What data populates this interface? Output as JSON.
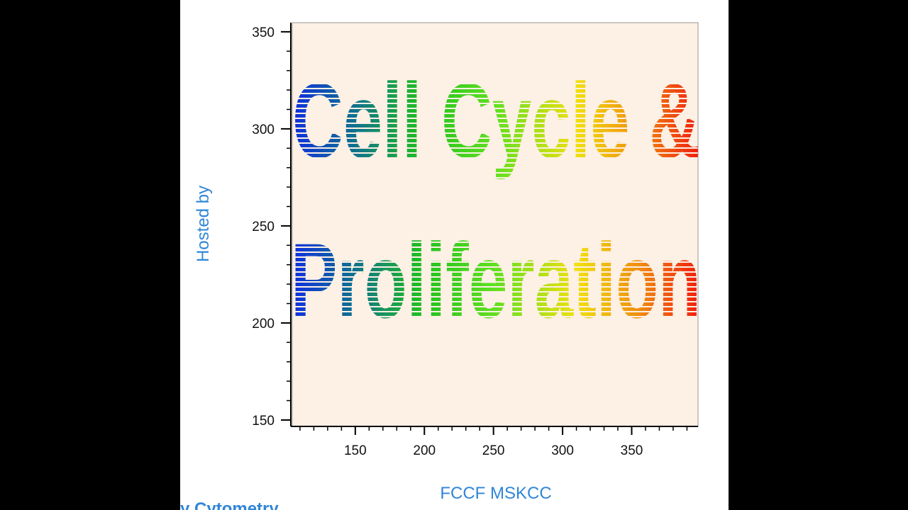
{
  "plot": {
    "xlim": [
      104.4,
      398
    ],
    "ylim": [
      146.7,
      354.7
    ],
    "xticks": [
      150,
      200,
      250,
      300,
      350
    ],
    "yticks": [
      150,
      200,
      250,
      300,
      350
    ],
    "x_label": "FCCF MSKCC",
    "y_label": "Hosted by"
  },
  "graphic_text": [
    "Cell Cycle &",
    "Proliferation"
  ],
  "footer_text": "y Cytometry"
}
